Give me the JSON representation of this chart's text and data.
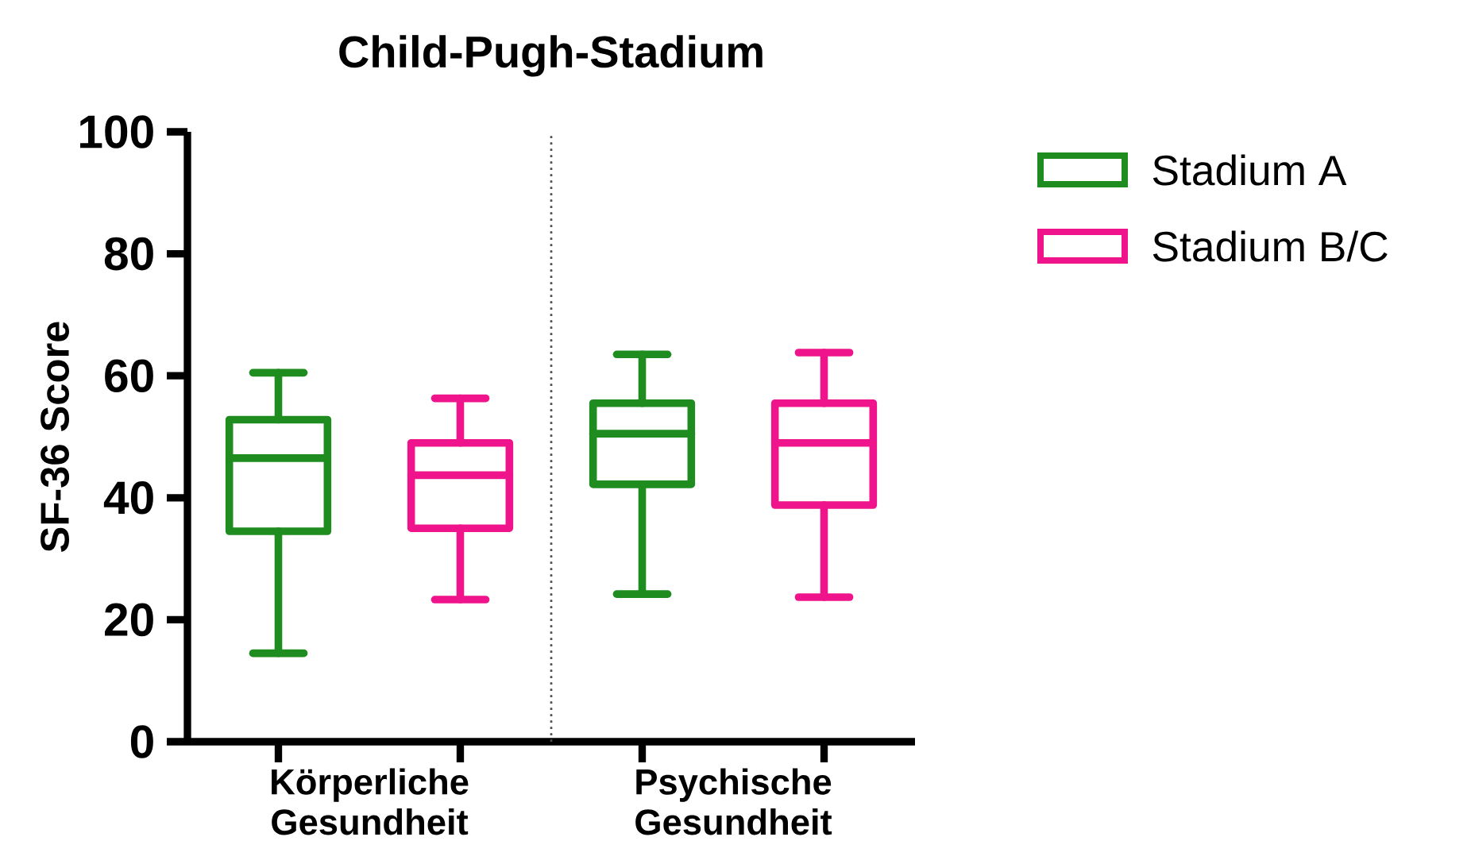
{
  "chart_data": {
    "type": "box",
    "title": "Child-Pugh-Stadium",
    "ylabel": "SF-36 Score",
    "categories": [
      "Körperliche Gesundheit",
      "Psychische Gesundheit"
    ],
    "series": [
      {
        "name": "Stadium A",
        "color": "#1e8c1e",
        "boxes": [
          {
            "low": 14.5,
            "q1": 34.5,
            "median": 46.5,
            "q3": 52.8,
            "high": 60.5
          },
          {
            "low": 24.2,
            "q1": 42.2,
            "median": 50.5,
            "q3": 55.5,
            "high": 63.5
          }
        ]
      },
      {
        "name": "Stadium B/C",
        "color": "#f0148c",
        "boxes": [
          {
            "low": 23.3,
            "q1": 35,
            "median": 43.7,
            "q3": 49,
            "high": 56.3
          },
          {
            "low": 23.7,
            "q1": 38.8,
            "median": 49,
            "q3": 55.5,
            "high": 63.8
          }
        ]
      }
    ],
    "ylim": [
      0,
      100
    ],
    "yticks": [
      0,
      20,
      40,
      60,
      80,
      100
    ],
    "grid": false,
    "legend": "top right"
  }
}
